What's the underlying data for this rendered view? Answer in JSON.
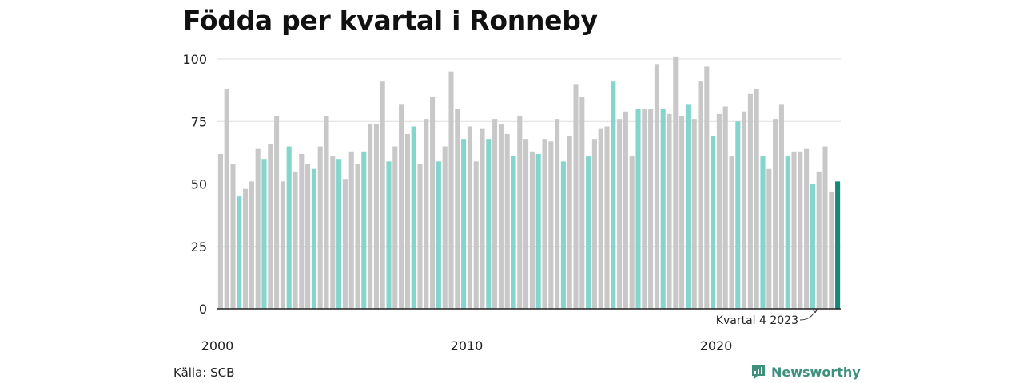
{
  "title": "Födda per kvartal i Ronneby",
  "source": "Källa: SCB",
  "brand": {
    "name": "Newsworthy",
    "icon": "newsworthy-logo-icon",
    "color": "#3d8f7e"
  },
  "colors": {
    "default": "#c8c8c8",
    "q4": "#84d5cb",
    "latest": "#15897a",
    "grid": "#dddddd",
    "axis": "#222222"
  },
  "chart_data": {
    "type": "bar",
    "title": "Födda per kvartal i Ronneby",
    "xlabel": "",
    "ylabel": "",
    "ylim": [
      0,
      100
    ],
    "yticks": [
      0,
      25,
      50,
      75,
      100
    ],
    "xtick_labels": [
      "2000",
      "2010",
      "2020"
    ],
    "grid": true,
    "annotation": "Kvartal 4 2023",
    "series": [
      {
        "values": [
          62,
          88,
          58,
          45,
          48,
          51,
          64,
          60,
          66,
          77,
          51,
          65,
          55,
          62,
          58,
          56,
          65,
          77,
          61,
          60,
          52,
          63,
          58,
          63,
          74,
          74,
          91,
          59,
          65,
          82,
          70,
          73,
          58,
          76,
          85,
          59,
          65,
          95,
          80,
          68,
          73,
          59,
          72,
          68,
          76,
          74,
          70,
          61,
          77,
          68,
          63,
          62,
          68,
          67,
          76,
          59,
          69,
          90,
          85,
          61,
          68,
          72,
          73,
          91,
          76,
          79,
          61,
          80,
          80,
          80,
          98,
          80,
          78,
          101,
          77,
          82,
          76,
          91,
          97,
          69,
          78,
          81,
          61,
          75,
          79,
          86,
          88,
          61,
          56,
          76,
          82,
          61,
          63,
          63,
          64,
          50,
          55,
          65,
          47,
          51
        ]
      }
    ]
  }
}
